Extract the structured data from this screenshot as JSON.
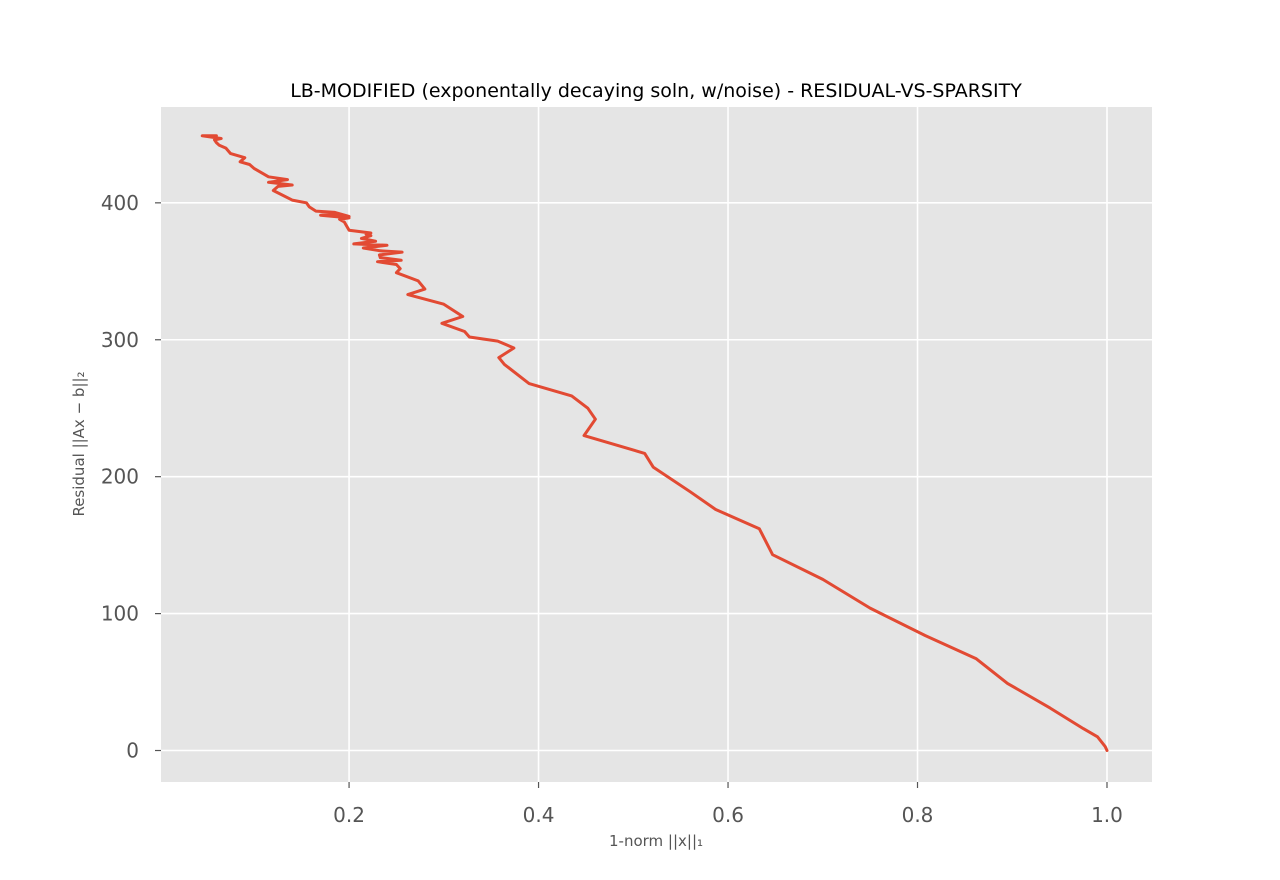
{
  "chart_data": {
    "type": "line",
    "title": "LB-MODIFIED (exponentally decaying soln, w/noise) - RESIDUAL-VS-SPARSITY",
    "xlabel": "1-norm ||x||₁",
    "ylabel": "Residual ||Ax − b||₂",
    "xlim": [
      0.0015,
      1.0475
    ],
    "ylim": [
      -23,
      470
    ],
    "xticks": [
      0.2,
      0.4,
      0.6,
      0.8,
      1.0
    ],
    "xtick_labels": [
      "0.2",
      "0.4",
      "0.6",
      "0.8",
      "1.0"
    ],
    "yticks": [
      0,
      100,
      200,
      300,
      400
    ],
    "ytick_labels": [
      "0",
      "100",
      "200",
      "300",
      "400"
    ],
    "grid": true,
    "colors": {
      "line": "#E24A33",
      "plot_background": "#E5E5E5",
      "grid": "#FFFFFF",
      "tick_text": "#555555"
    },
    "series": [
      {
        "points": [
          [
            1.0,
            0
          ],
          [
            0.998,
            3
          ],
          [
            0.99,
            10
          ],
          [
            0.975,
            16
          ],
          [
            0.94,
            31
          ],
          [
            0.895,
            49
          ],
          [
            0.862,
            67
          ],
          [
            0.808,
            84
          ],
          [
            0.75,
            104
          ],
          [
            0.7,
            125
          ],
          [
            0.647,
            143
          ],
          [
            0.633,
            162
          ],
          [
            0.587,
            176
          ],
          [
            0.56,
            189
          ],
          [
            0.521,
            207
          ],
          [
            0.512,
            217
          ],
          [
            0.448,
            230
          ],
          [
            0.46,
            242
          ],
          [
            0.452,
            250
          ],
          [
            0.435,
            259
          ],
          [
            0.39,
            268
          ],
          [
            0.364,
            282
          ],
          [
            0.358,
            287
          ],
          [
            0.374,
            294
          ],
          [
            0.357,
            299
          ],
          [
            0.327,
            302
          ],
          [
            0.322,
            306
          ],
          [
            0.298,
            312
          ],
          [
            0.32,
            317
          ],
          [
            0.3,
            326
          ],
          [
            0.262,
            333
          ],
          [
            0.28,
            337
          ],
          [
            0.273,
            343
          ],
          [
            0.25,
            349
          ],
          [
            0.254,
            352
          ],
          [
            0.25,
            355
          ],
          [
            0.23,
            357
          ],
          [
            0.255,
            358
          ],
          [
            0.233,
            360
          ],
          [
            0.232,
            362
          ],
          [
            0.256,
            364
          ],
          [
            0.233,
            365
          ],
          [
            0.215,
            367
          ],
          [
            0.24,
            369
          ],
          [
            0.205,
            370
          ],
          [
            0.228,
            372
          ],
          [
            0.213,
            374
          ],
          [
            0.223,
            376
          ],
          [
            0.218,
            377
          ],
          [
            0.223,
            378
          ],
          [
            0.2,
            380
          ],
          [
            0.195,
            386
          ],
          [
            0.19,
            388
          ],
          [
            0.2,
            389
          ],
          [
            0.17,
            391
          ],
          [
            0.18,
            392
          ],
          [
            0.2,
            390
          ],
          [
            0.185,
            393
          ],
          [
            0.165,
            394
          ],
          [
            0.158,
            397
          ],
          [
            0.155,
            400
          ],
          [
            0.14,
            402
          ],
          [
            0.12,
            409
          ],
          [
            0.125,
            412
          ],
          [
            0.14,
            413
          ],
          [
            0.115,
            415
          ],
          [
            0.135,
            417
          ],
          [
            0.115,
            419
          ],
          [
            0.11,
            421
          ],
          [
            0.1,
            425
          ],
          [
            0.095,
            428
          ],
          [
            0.085,
            430
          ],
          [
            0.09,
            433
          ],
          [
            0.075,
            436
          ],
          [
            0.07,
            440
          ],
          [
            0.063,
            442
          ],
          [
            0.06,
            444
          ],
          [
            0.058,
            446
          ],
          [
            0.065,
            447
          ],
          [
            0.045,
            449
          ],
          [
            0.06,
            449
          ]
        ]
      }
    ]
  }
}
